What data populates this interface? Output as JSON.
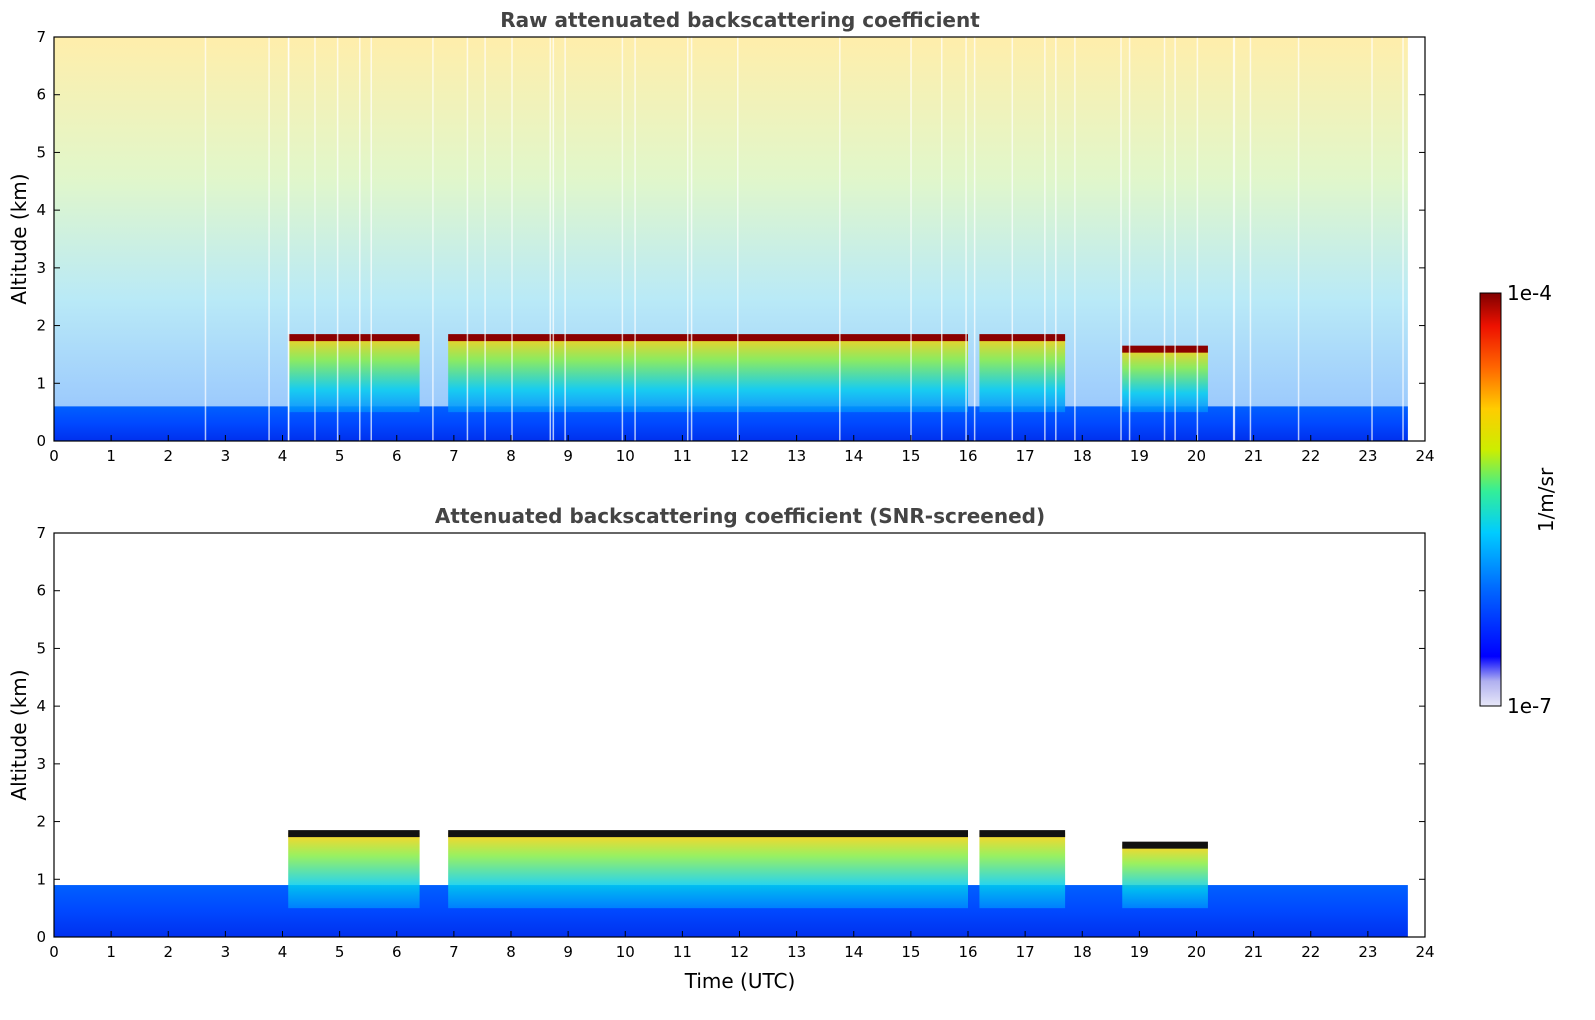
{
  "chart_data": [
    {
      "type": "heatmap",
      "title": "Raw attenuated backscattering coefficient",
      "xlabel": "",
      "ylabel": "Altitude (km)",
      "xlim": [
        0,
        24
      ],
      "ylim": [
        0,
        7
      ],
      "xticks": [
        "0",
        "1",
        "2",
        "3",
        "4",
        "5",
        "6",
        "7",
        "8",
        "9",
        "10",
        "11",
        "12",
        "13",
        "14",
        "15",
        "16",
        "17",
        "18",
        "19",
        "20",
        "21",
        "22",
        "23",
        "24"
      ],
      "yticks": [
        "0",
        "1",
        "2",
        "3",
        "4",
        "5",
        "6",
        "7"
      ],
      "data_end_time": 23.7,
      "boundary_layer_top_km": 0.6,
      "cloud_segments": [
        {
          "t_start": 4.1,
          "t_end": 6.4,
          "top_km": 1.8
        },
        {
          "t_start": 6.9,
          "t_end": 16.0,
          "top_km": 1.8
        },
        {
          "t_start": 16.2,
          "t_end": 17.7,
          "top_km": 1.8
        },
        {
          "t_start": 18.7,
          "t_end": 20.2,
          "top_km": 1.6
        }
      ]
    },
    {
      "type": "heatmap",
      "title": "Attenuated backscattering coefficient (SNR-screened)",
      "xlabel": "Time (UTC)",
      "ylabel": "Altitude (km)",
      "xlim": [
        0,
        24
      ],
      "ylim": [
        0,
        7
      ],
      "xticks": [
        "0",
        "1",
        "2",
        "3",
        "4",
        "5",
        "6",
        "7",
        "8",
        "9",
        "10",
        "11",
        "12",
        "13",
        "14",
        "15",
        "16",
        "17",
        "18",
        "19",
        "20",
        "21",
        "22",
        "23",
        "24"
      ],
      "yticks": [
        "0",
        "1",
        "2",
        "3",
        "4",
        "5",
        "6",
        "7"
      ],
      "data_end_time": 23.7,
      "boundary_layer_top_km": 0.9,
      "cloud_segments": [
        {
          "t_start": 4.1,
          "t_end": 6.4,
          "top_km": 1.8
        },
        {
          "t_start": 6.9,
          "t_end": 16.0,
          "top_km": 1.8
        },
        {
          "t_start": 16.2,
          "t_end": 17.7,
          "top_km": 1.8
        },
        {
          "t_start": 18.7,
          "t_end": 20.2,
          "top_km": 1.6
        }
      ]
    }
  ],
  "colorbar": {
    "max_label": "1e-4",
    "min_label": "1e-7",
    "unit_label": "1/m/sr",
    "colors": [
      "#e8e8f8",
      "#b0b0f0",
      "#0000ff",
      "#0066ff",
      "#00ccff",
      "#33ee99",
      "#ccee00",
      "#ffcc00",
      "#ff6600",
      "#ee1100",
      "#800000"
    ]
  }
}
